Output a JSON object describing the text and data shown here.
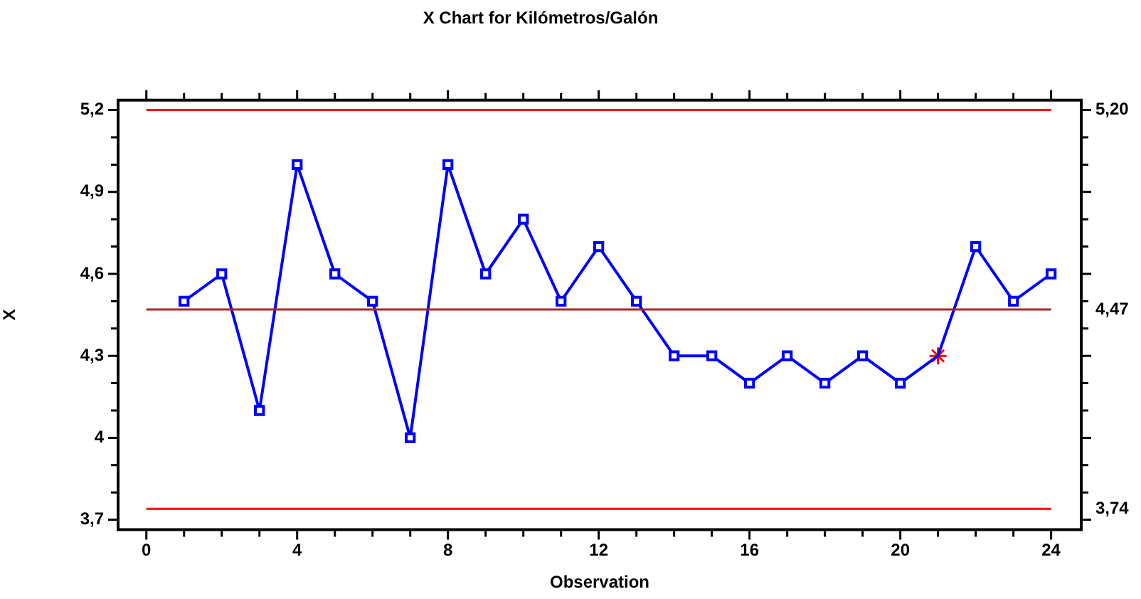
{
  "chart_data": {
    "type": "line",
    "title": "X Chart for Kilómetros/Galón",
    "xlabel": "Observation",
    "ylabel": "X",
    "x": [
      1,
      2,
      3,
      4,
      5,
      6,
      7,
      8,
      9,
      10,
      11,
      12,
      13,
      14,
      15,
      16,
      17,
      18,
      19,
      20,
      21,
      22,
      23,
      24
    ],
    "series": [
      {
        "color": "#0000ff",
        "marker": "square",
        "values": [
          4.5,
          4.6,
          4.1,
          5.0,
          4.6,
          4.5,
          4.0,
          5.0,
          4.6,
          4.8,
          4.5,
          4.7,
          4.5,
          4.3,
          4.3,
          4.2,
          4.3,
          4.2,
          4.3,
          4.2,
          4.3,
          4.7,
          4.5,
          4.6
        ]
      },
      {
        "type": "scatter",
        "color": "#ff0000",
        "marker": "cross",
        "x": [
          21
        ],
        "values": [
          4.3
        ]
      }
    ],
    "xlim": [
      -0.75,
      24.8
    ],
    "xticks": [
      0,
      {
        "value": 1,
        "label": null
      },
      {
        "value": 2,
        "label": null
      },
      {
        "value": 3,
        "label": null
      },
      4,
      {
        "value": 5,
        "label": null
      },
      {
        "value": 6,
        "label": null
      },
      {
        "value": 7,
        "label": null
      },
      8,
      {
        "value": 9,
        "label": null
      },
      {
        "value": 10,
        "label": null
      },
      {
        "value": 11,
        "label": null
      },
      12,
      {
        "value": 13,
        "label": null
      },
      {
        "value": 14,
        "label": null
      },
      {
        "value": 15,
        "label": null
      },
      16,
      {
        "value": 17,
        "label": null
      },
      {
        "value": 18,
        "label": null
      },
      {
        "value": 19,
        "label": null
      },
      20,
      {
        "value": 21,
        "label": null
      },
      {
        "value": 22,
        "label": null
      },
      {
        "value": 23,
        "label": null
      },
      24
    ],
    "ylim": [
      3.664,
      5.236
    ],
    "yticks": [
      {
        "value": 3.7,
        "label": "3,7"
      },
      {
        "value": 3.8,
        "label": null
      },
      {
        "value": 3.9,
        "label": null
      },
      {
        "value": 4,
        "label": "4"
      },
      {
        "value": 4.1,
        "label": null
      },
      {
        "value": 4.2,
        "label": null
      },
      {
        "value": 4.3,
        "label": "4,3"
      },
      {
        "value": 4.4,
        "label": null
      },
      {
        "value": 4.5,
        "label": null
      },
      {
        "value": 4.6,
        "label": "4,6"
      },
      {
        "value": 4.7,
        "label": null
      },
      {
        "value": 4.8,
        "label": null
      },
      {
        "value": 4.9,
        "label": "4,9"
      },
      {
        "value": 5.0,
        "label": null
      },
      {
        "value": 5.1,
        "label": null
      },
      {
        "value": 5.2,
        "label": "5,2"
      }
    ],
    "ref_lines": [
      {
        "axis": "y",
        "value": 5.2,
        "label": "5,20",
        "color": "#ff0000"
      },
      {
        "axis": "y",
        "value": 4.47,
        "label": "4,47",
        "color": "#a52a2a"
      },
      {
        "axis": "y",
        "value": 3.74,
        "label": "3,74",
        "color": "#ff0000"
      }
    ],
    "grid": false,
    "legend": false
  }
}
